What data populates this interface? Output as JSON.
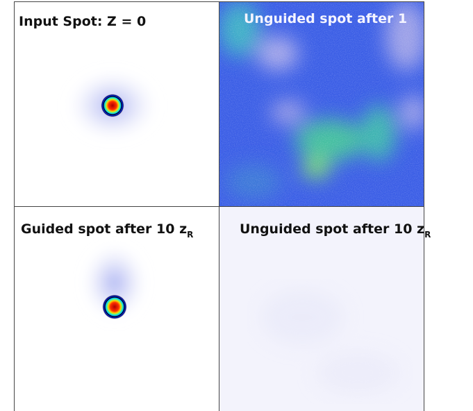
{
  "panels": [
    {
      "label": {
        "text": "Input Spot: Z = 0"
      }
    },
    {
      "label": {
        "text": "Unguided spot after 1"
      }
    },
    {
      "label": {
        "text": "Guided spot after 10 z",
        "subscript": "R"
      }
    },
    {
      "label": {
        "text": "Unguided spot after 10 z",
        "subscript": "R"
      }
    }
  ]
}
